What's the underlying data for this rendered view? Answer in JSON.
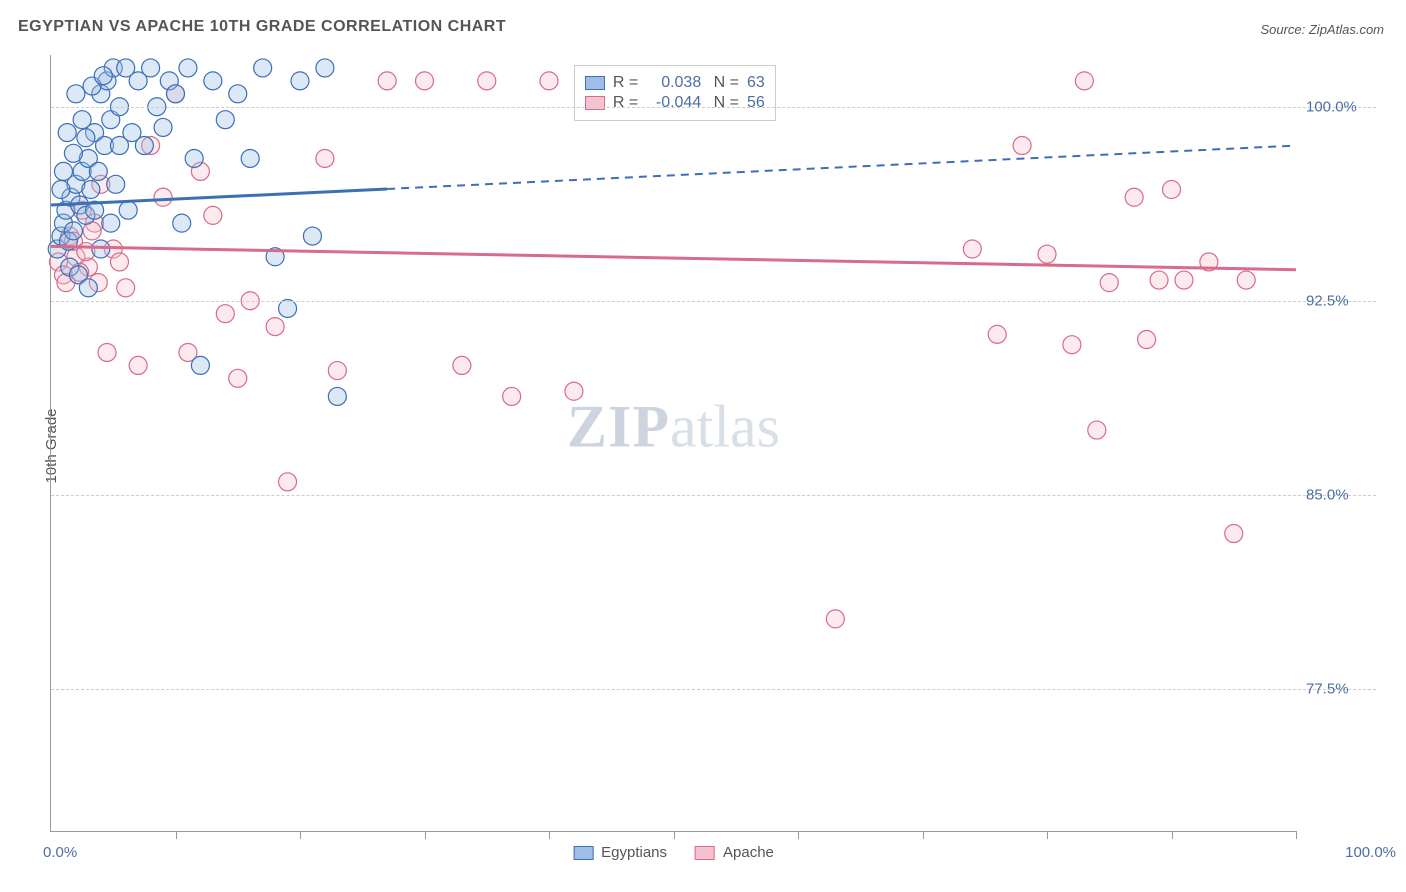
{
  "title": "EGYPTIAN VS APACHE 10TH GRADE CORRELATION CHART",
  "source": "Source: ZipAtlas.com",
  "ylabel": "10th Grade",
  "watermark": {
    "zip": "ZIP",
    "atlas": "atlas"
  },
  "chart": {
    "type": "scatter",
    "background_color": "#ffffff",
    "grid_color": "#cccccc",
    "axis_color": "#999999",
    "label_color": "#4a6fa5",
    "text_color": "#555555",
    "xlim": [
      0,
      100
    ],
    "ylim": [
      72,
      102
    ],
    "x_min_label": "0.0%",
    "x_max_label": "100.0%",
    "yticks": [
      {
        "v": 77.5,
        "label": "77.5%"
      },
      {
        "v": 85.0,
        "label": "85.0%"
      },
      {
        "v": 92.5,
        "label": "92.5%"
      },
      {
        "v": 100.0,
        "label": "100.0%"
      }
    ],
    "xticks": [
      10,
      20,
      30,
      40,
      50,
      60,
      70,
      80,
      90,
      100
    ],
    "marker_radius": 9,
    "marker_stroke_width": 1.2,
    "marker_fill_opacity": 0.35,
    "series": [
      {
        "name": "Egyptians",
        "color": "#3b6fb6",
        "fill": "#9fbde6",
        "R": "0.038",
        "N": "63",
        "trend": {
          "y0": 96.2,
          "y100": 98.5,
          "solid_until_x": 27
        },
        "points": [
          [
            0.5,
            94.5
          ],
          [
            0.8,
            95.0
          ],
          [
            1.0,
            95.5
          ],
          [
            1.2,
            96.0
          ],
          [
            1.4,
            94.8
          ],
          [
            1.6,
            96.5
          ],
          [
            1.8,
            95.2
          ],
          [
            2.0,
            97.0
          ],
          [
            2.3,
            96.2
          ],
          [
            2.5,
            97.5
          ],
          [
            2.8,
            95.8
          ],
          [
            3.0,
            98.0
          ],
          [
            3.2,
            96.8
          ],
          [
            3.5,
            99.0
          ],
          [
            3.8,
            97.5
          ],
          [
            4.0,
            100.5
          ],
          [
            4.3,
            98.5
          ],
          [
            4.5,
            101.0
          ],
          [
            4.8,
            99.5
          ],
          [
            5.0,
            101.5
          ],
          [
            5.5,
            100.0
          ],
          [
            6.0,
            101.5
          ],
          [
            6.5,
            99.0
          ],
          [
            7.0,
            101.0
          ],
          [
            7.5,
            98.5
          ],
          [
            8.0,
            101.5
          ],
          [
            8.5,
            100.0
          ],
          [
            9.0,
            99.2
          ],
          [
            9.5,
            101.0
          ],
          [
            10.0,
            100.5
          ],
          [
            10.5,
            95.5
          ],
          [
            11.0,
            101.5
          ],
          [
            11.5,
            98.0
          ],
          [
            12.0,
            90.0
          ],
          [
            13.0,
            101.0
          ],
          [
            14.0,
            99.5
          ],
          [
            15.0,
            100.5
          ],
          [
            16.0,
            98.0
          ],
          [
            17.0,
            101.5
          ],
          [
            18.0,
            94.2
          ],
          [
            19.0,
            92.2
          ],
          [
            20.0,
            101.0
          ],
          [
            21.0,
            95.0
          ],
          [
            22.0,
            101.5
          ],
          [
            23.0,
            88.8
          ],
          [
            1.5,
            93.8
          ],
          [
            2.2,
            93.5
          ],
          [
            3.0,
            93.0
          ],
          [
            1.0,
            97.5
          ],
          [
            1.8,
            98.2
          ],
          [
            2.5,
            99.5
          ],
          [
            3.3,
            100.8
          ],
          [
            4.2,
            101.2
          ],
          [
            5.2,
            97.0
          ],
          [
            6.2,
            96.0
          ],
          [
            0.8,
            96.8
          ],
          [
            1.3,
            99.0
          ],
          [
            2.0,
            100.5
          ],
          [
            2.8,
            98.8
          ],
          [
            3.5,
            96.0
          ],
          [
            4.0,
            94.5
          ],
          [
            4.8,
            95.5
          ],
          [
            5.5,
            98.5
          ]
        ]
      },
      {
        "name": "Apache",
        "color": "#d86a8a",
        "fill": "#f5c2d0",
        "R": "-0.044",
        "N": "56",
        "trend": {
          "y0": 94.6,
          "y100": 93.7,
          "solid_until_x": 100
        },
        "points": [
          [
            0.6,
            94.0
          ],
          [
            1.0,
            93.5
          ],
          [
            1.5,
            95.0
          ],
          [
            2.0,
            94.2
          ],
          [
            2.5,
            96.0
          ],
          [
            3.0,
            93.8
          ],
          [
            3.5,
            95.5
          ],
          [
            4.0,
            97.0
          ],
          [
            5.0,
            94.5
          ],
          [
            6.0,
            93.0
          ],
          [
            7.0,
            90.0
          ],
          [
            8.0,
            98.5
          ],
          [
            9.0,
            96.5
          ],
          [
            10.0,
            100.5
          ],
          [
            11.0,
            90.5
          ],
          [
            12.0,
            97.5
          ],
          [
            13.0,
            95.8
          ],
          [
            14.0,
            92.0
          ],
          [
            15.0,
            89.5
          ],
          [
            16.0,
            92.5
          ],
          [
            18.0,
            91.5
          ],
          [
            19.0,
            85.5
          ],
          [
            22.0,
            98.0
          ],
          [
            23.0,
            89.8
          ],
          [
            27.0,
            101.0
          ],
          [
            30.0,
            101.0
          ],
          [
            33.0,
            90.0
          ],
          [
            35.0,
            101.0
          ],
          [
            37.0,
            88.8
          ],
          [
            40.0,
            101.0
          ],
          [
            42.0,
            89.0
          ],
          [
            63.0,
            80.2
          ],
          [
            74.0,
            94.5
          ],
          [
            76.0,
            91.2
          ],
          [
            78.0,
            98.5
          ],
          [
            80.0,
            94.3
          ],
          [
            82.0,
            90.8
          ],
          [
            83.0,
            101.0
          ],
          [
            84.0,
            87.5
          ],
          [
            85.0,
            93.2
          ],
          [
            87.0,
            96.5
          ],
          [
            88.0,
            91.0
          ],
          [
            89.0,
            93.3
          ],
          [
            90.0,
            96.8
          ],
          [
            91.0,
            93.3
          ],
          [
            93.0,
            94.0
          ],
          [
            95.0,
            83.5
          ],
          [
            96.0,
            93.3
          ],
          [
            1.2,
            93.2
          ],
          [
            1.8,
            94.8
          ],
          [
            2.3,
            93.6
          ],
          [
            2.8,
            94.4
          ],
          [
            3.3,
            95.2
          ],
          [
            3.8,
            93.2
          ],
          [
            4.5,
            90.5
          ],
          [
            5.5,
            94.0
          ]
        ]
      }
    ]
  }
}
